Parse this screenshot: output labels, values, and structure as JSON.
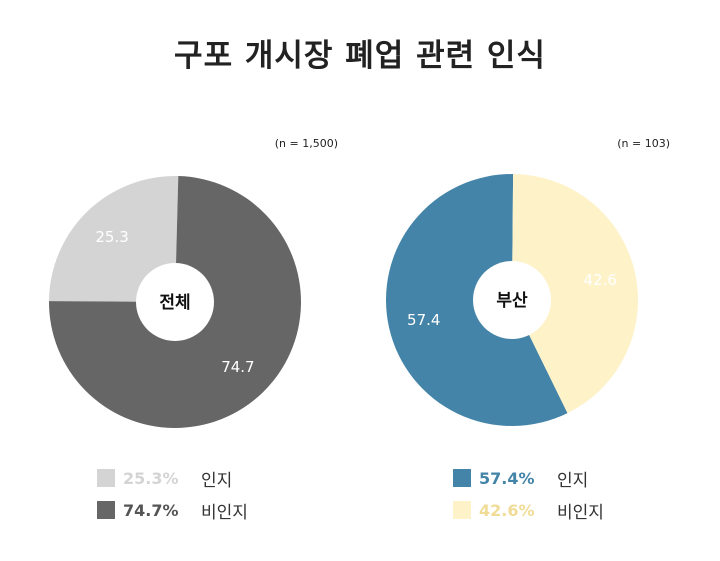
{
  "title": "구포 개시장 폐업 관련 인식",
  "chart_data": [
    {
      "type": "pie",
      "center_label": "전체",
      "n_label": "(n = 1,500)",
      "categories": [
        "인지",
        "비인지"
      ],
      "values": [
        25.3,
        74.7
      ],
      "colors": [
        "#d4d4d4",
        "#666666"
      ],
      "legend": [
        {
          "pct": "25.3%",
          "label": "인지",
          "color": "#d4d4d4"
        },
        {
          "pct": "74.7%",
          "label": "비인지",
          "color": "#666666"
        }
      ]
    },
    {
      "type": "pie",
      "center_label": "부산",
      "n_label": "(n = 103)",
      "categories": [
        "인지",
        "비인지"
      ],
      "values": [
        57.4,
        42.6
      ],
      "colors": [
        "#4484a8",
        "#fdf2c8"
      ],
      "legend": [
        {
          "pct": "57.4%",
          "label": "인지",
          "color": "#4484a8"
        },
        {
          "pct": "42.6%",
          "label": "비인지",
          "color": "#f0dc96"
        }
      ]
    }
  ]
}
